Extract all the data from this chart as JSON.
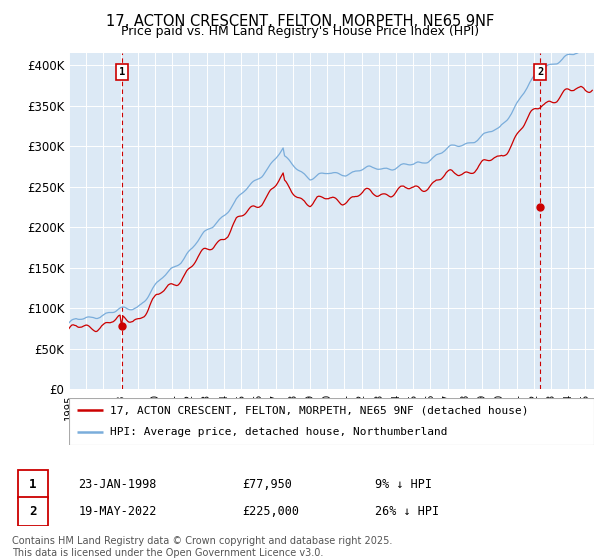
{
  "title": "17, ACTON CRESCENT, FELTON, MORPETH, NE65 9NF",
  "subtitle": "Price paid vs. HM Land Registry's House Price Index (HPI)",
  "ytick_labels": [
    "£0",
    "£50K",
    "£100K",
    "£150K",
    "£200K",
    "£250K",
    "£300K",
    "£350K",
    "£400K"
  ],
  "yticks": [
    0,
    50000,
    100000,
    150000,
    200000,
    250000,
    300000,
    350000,
    400000
  ],
  "xlim_start": 1995.0,
  "xlim_end": 2025.5,
  "ylim_min": 0,
  "ylim_max": 415000,
  "marker1_x": 1998.07,
  "marker1_y": 77950,
  "marker2_x": 2022.38,
  "marker2_y": 225000,
  "annotation1_date": "23-JAN-1998",
  "annotation1_price": "£77,950",
  "annotation1_hpi": "9% ↓ HPI",
  "annotation2_date": "19-MAY-2022",
  "annotation2_price": "£225,000",
  "annotation2_hpi": "26% ↓ HPI",
  "legend1_label": "17, ACTON CRESCENT, FELTON, MORPETH, NE65 9NF (detached house)",
  "legend2_label": "HPI: Average price, detached house, Northumberland",
  "footer": "Contains HM Land Registry data © Crown copyright and database right 2025.\nThis data is licensed under the Open Government Licence v3.0.",
  "line_color_red": "#cc0000",
  "line_color_blue": "#7aaddb",
  "bg_plot_color": "#dce9f5",
  "background_color": "#ffffff",
  "grid_color": "#ffffff",
  "title_fontsize": 10.5,
  "subtitle_fontsize": 9,
  "axis_fontsize": 8.5,
  "legend_fontsize": 8,
  "footer_fontsize": 7
}
